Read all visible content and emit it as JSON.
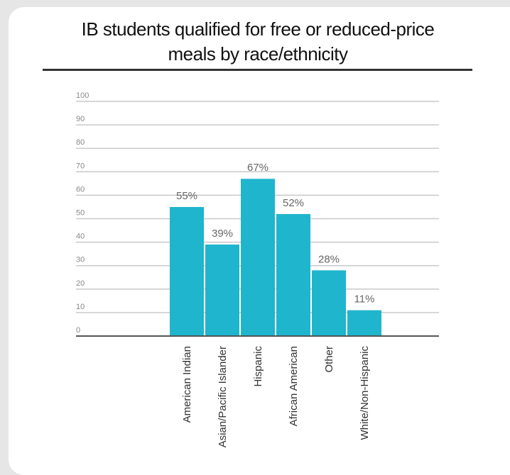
{
  "chart_data": {
    "type": "bar",
    "title_line1": "IB students qualified for free or reduced-price",
    "title_line2": "meals by race/ethnicity",
    "categories": [
      "American Indian",
      "Asian/Pacific Islander",
      "Hispanic",
      "African American",
      "Other",
      "White/Non-Hispanic"
    ],
    "values": [
      55,
      39,
      67,
      52,
      28,
      11
    ],
    "value_labels": [
      "55%",
      "39%",
      "67%",
      "52%",
      "28%",
      "11%"
    ],
    "yticks": [
      0,
      10,
      20,
      30,
      40,
      50,
      60,
      70,
      80,
      90,
      100
    ],
    "ylim": [
      0,
      100
    ],
    "grid": true,
    "bar_color": "#1fb5cd",
    "xlabel": "",
    "ylabel": ""
  }
}
